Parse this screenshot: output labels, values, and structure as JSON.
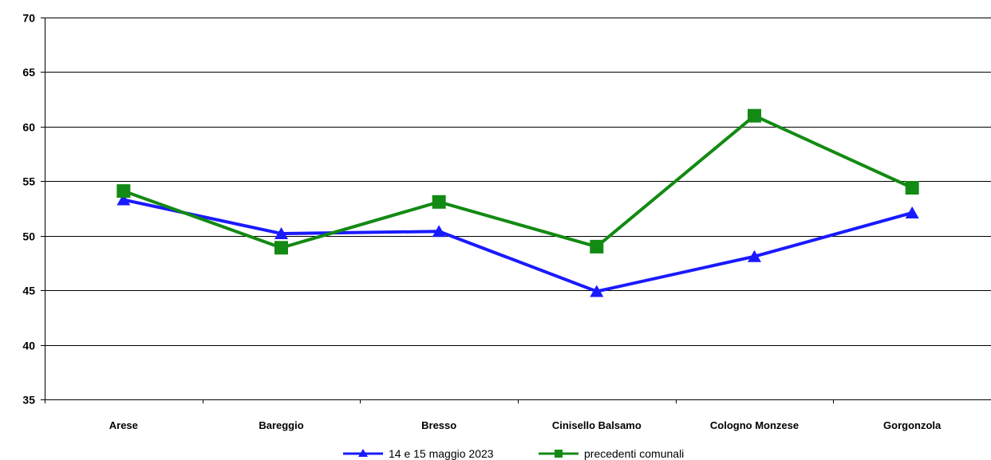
{
  "chart_data": {
    "type": "line",
    "categories": [
      "Arese",
      "Bareggio",
      "Bresso",
      "Cinisello Balsamo",
      "Cologno Monzese",
      "Gorgonzola"
    ],
    "ylim": [
      35,
      70
    ],
    "yticks": [
      35,
      40,
      45,
      50,
      55,
      60,
      65,
      70
    ],
    "grid": true,
    "legend_position": "bottom",
    "series": [
      {
        "name": "14 e 15 maggio 2023",
        "color": "#1a1aff",
        "marker": "triangle",
        "values": [
          53.3,
          50.2,
          50.4,
          44.9,
          48.1,
          52.1
        ]
      },
      {
        "name": "precedenti comunali",
        "color": "#138a13",
        "marker": "square",
        "values": [
          54.1,
          48.9,
          53.1,
          49.0,
          61.0,
          54.4
        ]
      }
    ]
  }
}
